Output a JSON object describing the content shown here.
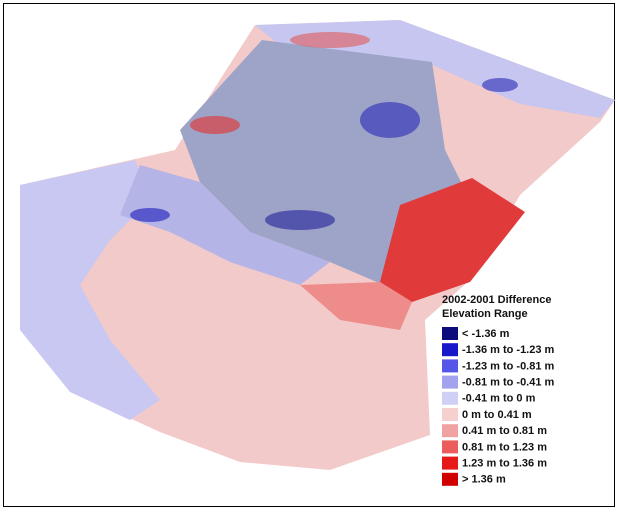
{
  "legend": {
    "title": [
      "2002-2001 Difference",
      "Elevation Range"
    ],
    "items": [
      {
        "label": "< -1.36 m",
        "color": "#0c0c7c"
      },
      {
        "label": "-1.36 m to -1.23 m",
        "color": "#1818c8"
      },
      {
        "label": "-1.23 m to -0.81 m",
        "color": "#5656e8"
      },
      {
        "label": "-0.81 m to -0.41 m",
        "color": "#a2a2ee"
      },
      {
        "label": "-0.41 m to 0 m",
        "color": "#d0d0f6"
      },
      {
        "label": "0 m to 0.41 m",
        "color": "#f6cfcf"
      },
      {
        "label": "0.41 m to 0.81 m",
        "color": "#f0a2a2"
      },
      {
        "label": "0.81 m to 1.23 m",
        "color": "#ec5c5c"
      },
      {
        "label": "1.23 m to 1.36 m",
        "color": "#e61818"
      },
      {
        "label": "> 1.36 m",
        "color": "#d00000"
      }
    ]
  }
}
